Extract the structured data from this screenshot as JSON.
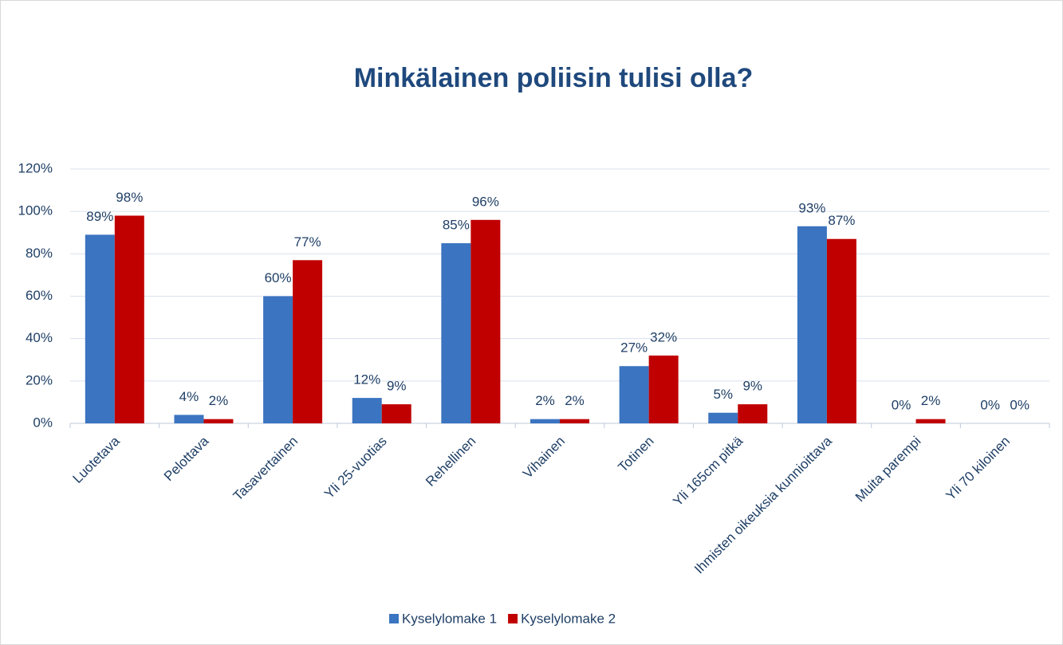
{
  "chart_data": {
    "type": "bar",
    "title": "Minkälainen poliisin tulisi olla?",
    "categories": [
      "Luotetava",
      "Pelottava",
      "Tasavertainen",
      "Yli 25-vuotias",
      "Rehellinen",
      "Vihainen",
      "Totinen",
      "Yli 165cm pitkä",
      "Ihmisten oikeuksia kunnioittava",
      "Muita parempi",
      "Yli 70 kiloinen"
    ],
    "series": [
      {
        "name": "Kyselylomake 1",
        "color": "#3b74c0",
        "values": [
          89,
          4,
          60,
          12,
          85,
          2,
          27,
          5,
          93,
          0,
          0
        ],
        "value_labels": [
          "89%",
          "4%",
          "60%",
          "12%",
          "85%",
          "2%",
          "27%",
          "5%",
          "93%",
          "0%",
          "0%"
        ]
      },
      {
        "name": "Kyselylomake 2",
        "color": "#c00000",
        "values": [
          98,
          2,
          77,
          9,
          96,
          2,
          32,
          9,
          87,
          2,
          0
        ],
        "value_labels": [
          "98%",
          "2%",
          "77%",
          "9%",
          "96%",
          "2%",
          "32%",
          "9%",
          "87%",
          "2%",
          "0%"
        ]
      }
    ],
    "ylim": [
      0,
      120
    ],
    "yticks": [
      {
        "value": 0,
        "label": "0%"
      },
      {
        "value": 20,
        "label": "20%"
      },
      {
        "value": 40,
        "label": "40%"
      },
      {
        "value": 60,
        "label": "60%"
      },
      {
        "value": 80,
        "label": "80%"
      },
      {
        "value": 100,
        "label": "100%"
      },
      {
        "value": 120,
        "label": "120%"
      }
    ],
    "grid": true,
    "legend": "bottom"
  }
}
